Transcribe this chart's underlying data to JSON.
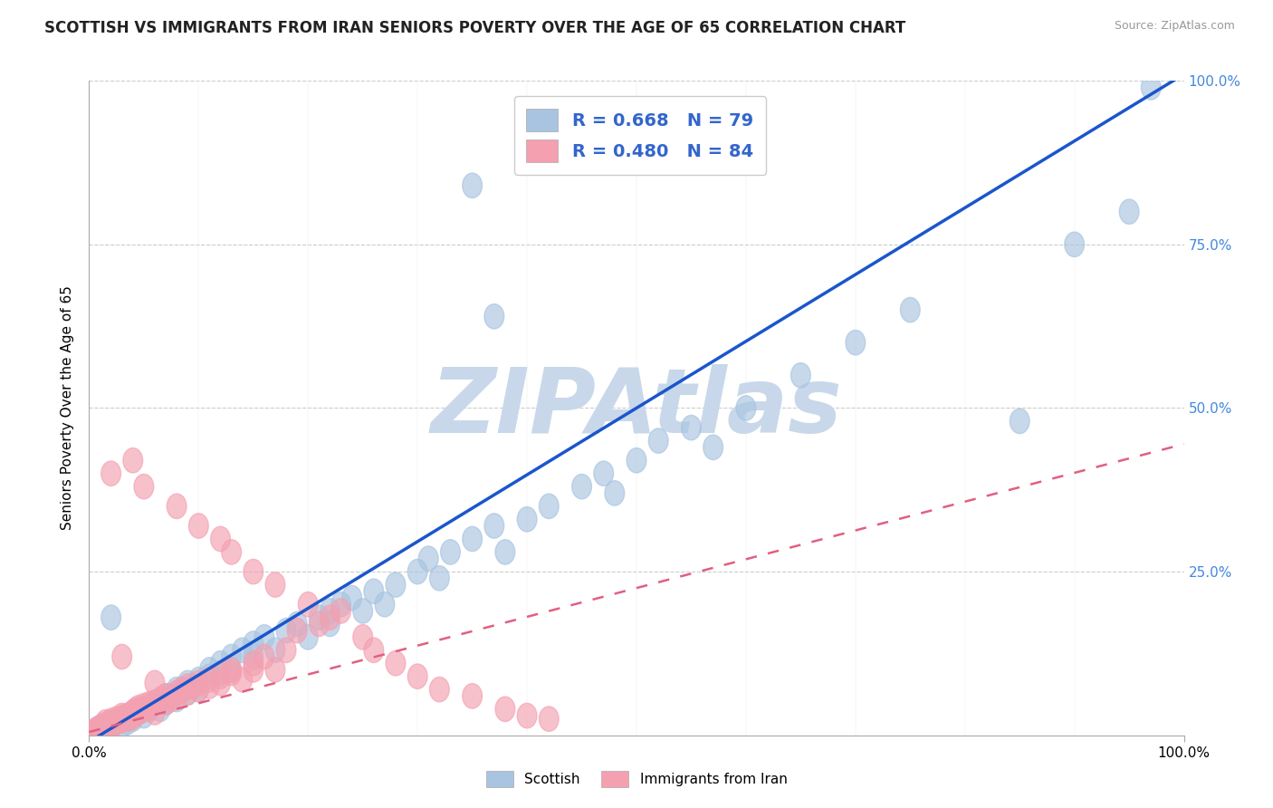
{
  "title": "SCOTTISH VS IMMIGRANTS FROM IRAN SENIORS POVERTY OVER THE AGE OF 65 CORRELATION CHART",
  "source_text": "Source: ZipAtlas.com",
  "ylabel": "Seniors Poverty Over the Age of 65",
  "watermark": "ZIPAtlas",
  "xlim": [
    0.0,
    1.0
  ],
  "ylim": [
    0.0,
    1.0
  ],
  "scottish_color": "#a8c4e0",
  "iran_color": "#f4a0b0",
  "scottish_line_color": "#1a56cc",
  "iran_line_color": "#e06080",
  "background_color": "#ffffff",
  "grid_color": "#cccccc",
  "title_fontsize": 12,
  "axis_label_fontsize": 11,
  "tick_fontsize": 11,
  "legend_fontsize": 14,
  "watermark_color": "#c8d8ea",
  "watermark_fontsize": 72,
  "scottish_line_slope": 1.02,
  "scottish_line_intercept": -0.01,
  "iran_line_slope": 0.44,
  "iran_line_intercept": 0.005,
  "scottish_points": [
    [
      0.005,
      0.005
    ],
    [
      0.008,
      0.01
    ],
    [
      0.01,
      0.005
    ],
    [
      0.012,
      0.008
    ],
    [
      0.015,
      0.01
    ],
    [
      0.018,
      0.015
    ],
    [
      0.02,
      0.01
    ],
    [
      0.025,
      0.02
    ],
    [
      0.03,
      0.015
    ],
    [
      0.03,
      0.025
    ],
    [
      0.035,
      0.02
    ],
    [
      0.04,
      0.03
    ],
    [
      0.04,
      0.025
    ],
    [
      0.045,
      0.035
    ],
    [
      0.05,
      0.03
    ],
    [
      0.05,
      0.04
    ],
    [
      0.055,
      0.04
    ],
    [
      0.06,
      0.05
    ],
    [
      0.065,
      0.04
    ],
    [
      0.07,
      0.06
    ],
    [
      0.07,
      0.05
    ],
    [
      0.075,
      0.06
    ],
    [
      0.08,
      0.07
    ],
    [
      0.08,
      0.055
    ],
    [
      0.085,
      0.07
    ],
    [
      0.09,
      0.08
    ],
    [
      0.09,
      0.065
    ],
    [
      0.095,
      0.075
    ],
    [
      0.1,
      0.085
    ],
    [
      0.1,
      0.07
    ],
    [
      0.11,
      0.09
    ],
    [
      0.11,
      0.1
    ],
    [
      0.12,
      0.095
    ],
    [
      0.12,
      0.11
    ],
    [
      0.13,
      0.1
    ],
    [
      0.13,
      0.12
    ],
    [
      0.14,
      0.13
    ],
    [
      0.15,
      0.12
    ],
    [
      0.15,
      0.14
    ],
    [
      0.16,
      0.15
    ],
    [
      0.17,
      0.13
    ],
    [
      0.18,
      0.16
    ],
    [
      0.19,
      0.17
    ],
    [
      0.2,
      0.15
    ],
    [
      0.21,
      0.18
    ],
    [
      0.22,
      0.19
    ],
    [
      0.22,
      0.17
    ],
    [
      0.23,
      0.2
    ],
    [
      0.24,
      0.21
    ],
    [
      0.25,
      0.19
    ],
    [
      0.26,
      0.22
    ],
    [
      0.27,
      0.2
    ],
    [
      0.28,
      0.23
    ],
    [
      0.3,
      0.25
    ],
    [
      0.31,
      0.27
    ],
    [
      0.32,
      0.24
    ],
    [
      0.33,
      0.28
    ],
    [
      0.35,
      0.3
    ],
    [
      0.37,
      0.32
    ],
    [
      0.38,
      0.28
    ],
    [
      0.4,
      0.33
    ],
    [
      0.42,
      0.35
    ],
    [
      0.45,
      0.38
    ],
    [
      0.47,
      0.4
    ],
    [
      0.48,
      0.37
    ],
    [
      0.5,
      0.42
    ],
    [
      0.52,
      0.45
    ],
    [
      0.55,
      0.47
    ],
    [
      0.57,
      0.44
    ],
    [
      0.6,
      0.5
    ],
    [
      0.65,
      0.55
    ],
    [
      0.7,
      0.6
    ],
    [
      0.75,
      0.65
    ],
    [
      0.85,
      0.48
    ],
    [
      0.9,
      0.75
    ],
    [
      0.95,
      0.8
    ],
    [
      0.97,
      0.99
    ],
    [
      0.35,
      0.84
    ],
    [
      0.37,
      0.64
    ],
    [
      0.02,
      0.18
    ]
  ],
  "iran_points": [
    [
      0.005,
      0.005
    ],
    [
      0.006,
      0.008
    ],
    [
      0.008,
      0.005
    ],
    [
      0.009,
      0.01
    ],
    [
      0.01,
      0.008
    ],
    [
      0.01,
      0.012
    ],
    [
      0.012,
      0.01
    ],
    [
      0.013,
      0.015
    ],
    [
      0.015,
      0.01
    ],
    [
      0.015,
      0.02
    ],
    [
      0.018,
      0.012
    ],
    [
      0.018,
      0.018
    ],
    [
      0.02,
      0.015
    ],
    [
      0.02,
      0.022
    ],
    [
      0.022,
      0.018
    ],
    [
      0.025,
      0.02
    ],
    [
      0.025,
      0.025
    ],
    [
      0.028,
      0.022
    ],
    [
      0.03,
      0.025
    ],
    [
      0.03,
      0.03
    ],
    [
      0.032,
      0.028
    ],
    [
      0.035,
      0.03
    ],
    [
      0.035,
      0.025
    ],
    [
      0.038,
      0.032
    ],
    [
      0.04,
      0.035
    ],
    [
      0.04,
      0.028
    ],
    [
      0.042,
      0.038
    ],
    [
      0.045,
      0.035
    ],
    [
      0.045,
      0.042
    ],
    [
      0.048,
      0.038
    ],
    [
      0.05,
      0.04
    ],
    [
      0.05,
      0.045
    ],
    [
      0.055,
      0.042
    ],
    [
      0.055,
      0.048
    ],
    [
      0.06,
      0.05
    ],
    [
      0.06,
      0.035
    ],
    [
      0.065,
      0.055
    ],
    [
      0.07,
      0.05
    ],
    [
      0.07,
      0.06
    ],
    [
      0.075,
      0.055
    ],
    [
      0.08,
      0.06
    ],
    [
      0.08,
      0.065
    ],
    [
      0.085,
      0.07
    ],
    [
      0.09,
      0.065
    ],
    [
      0.09,
      0.075
    ],
    [
      0.1,
      0.07
    ],
    [
      0.1,
      0.08
    ],
    [
      0.11,
      0.075
    ],
    [
      0.11,
      0.085
    ],
    [
      0.12,
      0.09
    ],
    [
      0.12,
      0.08
    ],
    [
      0.13,
      0.095
    ],
    [
      0.13,
      0.1
    ],
    [
      0.14,
      0.085
    ],
    [
      0.15,
      0.1
    ],
    [
      0.15,
      0.11
    ],
    [
      0.16,
      0.12
    ],
    [
      0.17,
      0.1
    ],
    [
      0.18,
      0.13
    ],
    [
      0.02,
      0.4
    ],
    [
      0.04,
      0.42
    ],
    [
      0.05,
      0.38
    ],
    [
      0.08,
      0.35
    ],
    [
      0.1,
      0.32
    ],
    [
      0.12,
      0.3
    ],
    [
      0.13,
      0.28
    ],
    [
      0.15,
      0.25
    ],
    [
      0.17,
      0.23
    ],
    [
      0.2,
      0.2
    ],
    [
      0.22,
      0.18
    ],
    [
      0.25,
      0.15
    ],
    [
      0.03,
      0.12
    ],
    [
      0.06,
      0.08
    ],
    [
      0.19,
      0.16
    ],
    [
      0.21,
      0.17
    ],
    [
      0.23,
      0.19
    ],
    [
      0.26,
      0.13
    ],
    [
      0.28,
      0.11
    ],
    [
      0.3,
      0.09
    ],
    [
      0.32,
      0.07
    ],
    [
      0.35,
      0.06
    ],
    [
      0.38,
      0.04
    ],
    [
      0.4,
      0.03
    ],
    [
      0.42,
      0.025
    ]
  ]
}
